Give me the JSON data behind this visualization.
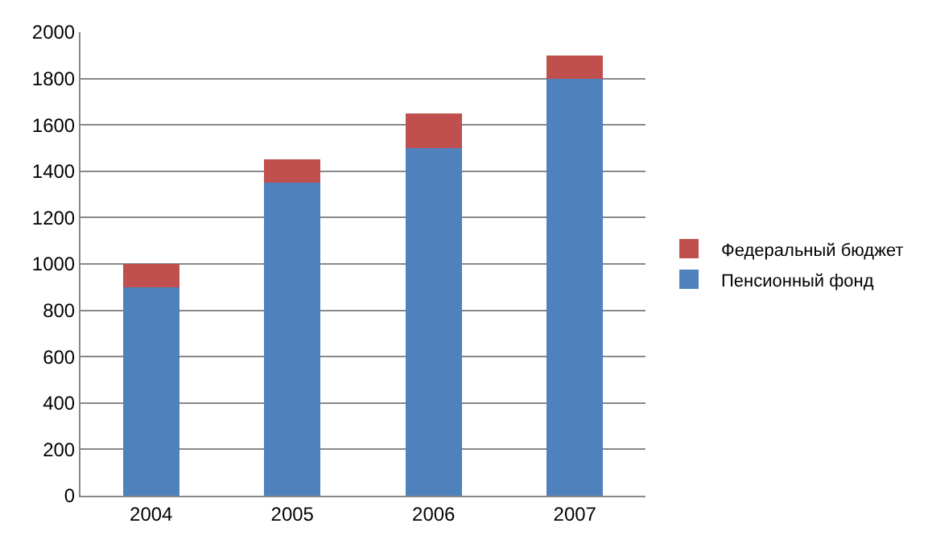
{
  "chart_data": {
    "type": "bar",
    "stacked": true,
    "categories": [
      "2004",
      "2005",
      "2006",
      "2007"
    ],
    "series": [
      {
        "name": "Пенсионный фонд",
        "color": "#4f81bd",
        "values": [
          900,
          1350,
          1500,
          1800
        ]
      },
      {
        "name": "Федеральный бюджет",
        "color": "#c0504d",
        "values": [
          100,
          100,
          150,
          100
        ]
      }
    ],
    "ylim": [
      0,
      2000
    ],
    "yticks": [
      0,
      200,
      400,
      600,
      800,
      1000,
      1200,
      1400,
      1600,
      1800,
      2000
    ],
    "grid": "y",
    "legend": "right"
  }
}
